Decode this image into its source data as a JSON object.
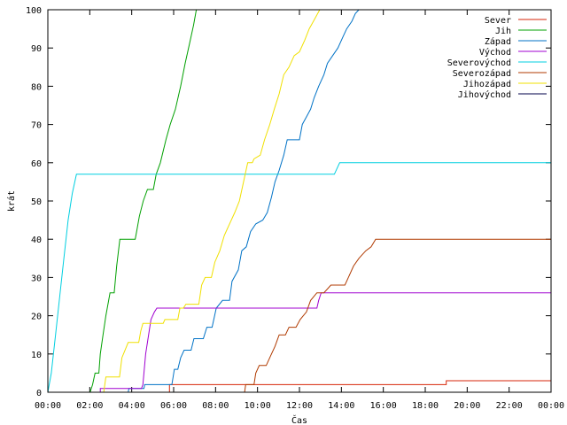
{
  "chart_data": {
    "type": "line",
    "title": "",
    "xlabel": "Čas",
    "ylabel": "krát",
    "xlim": [
      0,
      1440
    ],
    "ylim": [
      0,
      100
    ],
    "x_unit": "minutes since 00:00",
    "xticks": [
      {
        "value": 0,
        "label": "00:00"
      },
      {
        "value": 120,
        "label": "02:00"
      },
      {
        "value": 240,
        "label": "04:00"
      },
      {
        "value": 360,
        "label": "06:00"
      },
      {
        "value": 480,
        "label": "08:00"
      },
      {
        "value": 600,
        "label": "10:00"
      },
      {
        "value": 720,
        "label": "12:00"
      },
      {
        "value": 840,
        "label": "14:00"
      },
      {
        "value": 960,
        "label": "16:00"
      },
      {
        "value": 1080,
        "label": "18:00"
      },
      {
        "value": 1200,
        "label": "20:00"
      },
      {
        "value": 1320,
        "label": "22:00"
      },
      {
        "value": 1440,
        "label": "00:00"
      }
    ],
    "yticks": [
      0,
      10,
      20,
      30,
      40,
      50,
      60,
      70,
      80,
      90,
      100
    ],
    "grid": false,
    "legend_position": "top-right",
    "series": [
      {
        "name": "Sever",
        "color": "#d72608",
        "points": [
          [
            0,
            0
          ],
          [
            348,
            0
          ],
          [
            348,
            2
          ],
          [
            1140,
            2
          ],
          [
            1140,
            3
          ],
          [
            1440,
            3
          ]
        ]
      },
      {
        "name": "Jih",
        "color": "#00a000",
        "points": [
          [
            121,
            0
          ],
          [
            128,
            2
          ],
          [
            135,
            5
          ],
          [
            146,
            5
          ],
          [
            150,
            10
          ],
          [
            158,
            15
          ],
          [
            166,
            20
          ],
          [
            178,
            26
          ],
          [
            190,
            26
          ],
          [
            197,
            33
          ],
          [
            206,
            40
          ],
          [
            250,
            40
          ],
          [
            254,
            42
          ],
          [
            262,
            46
          ],
          [
            273,
            50
          ],
          [
            285,
            53
          ],
          [
            302,
            53
          ],
          [
            310,
            57
          ],
          [
            322,
            60
          ],
          [
            338,
            66
          ],
          [
            350,
            70
          ],
          [
            365,
            74
          ],
          [
            380,
            80
          ],
          [
            393,
            86
          ],
          [
            405,
            91
          ],
          [
            417,
            96
          ],
          [
            425,
            100
          ]
        ]
      },
      {
        "name": "Západ",
        "color": "#0072c6",
        "points": [
          [
            0,
            0
          ],
          [
            230,
            0
          ],
          [
            232,
            1
          ],
          [
            275,
            1
          ],
          [
            277,
            2
          ],
          [
            355,
            2
          ],
          [
            362,
            6
          ],
          [
            372,
            6
          ],
          [
            380,
            9
          ],
          [
            390,
            11
          ],
          [
            410,
            11
          ],
          [
            418,
            14
          ],
          [
            445,
            14
          ],
          [
            455,
            17
          ],
          [
            470,
            17
          ],
          [
            482,
            22
          ],
          [
            500,
            24
          ],
          [
            520,
            24
          ],
          [
            527,
            29
          ],
          [
            545,
            32
          ],
          [
            555,
            37
          ],
          [
            568,
            38
          ],
          [
            580,
            42
          ],
          [
            595,
            44
          ],
          [
            615,
            45
          ],
          [
            628,
            47
          ],
          [
            640,
            51
          ],
          [
            650,
            55
          ],
          [
            662,
            58
          ],
          [
            675,
            62
          ],
          [
            685,
            66
          ],
          [
            720,
            66
          ],
          [
            728,
            70
          ],
          [
            740,
            72
          ],
          [
            752,
            74
          ],
          [
            762,
            77
          ],
          [
            775,
            80
          ],
          [
            790,
            83
          ],
          [
            800,
            86
          ],
          [
            815,
            88
          ],
          [
            830,
            90
          ],
          [
            845,
            93
          ],
          [
            855,
            95
          ],
          [
            870,
            97
          ],
          [
            880,
            99
          ],
          [
            890,
            100
          ],
          [
            1440,
            100
          ]
        ]
      },
      {
        "name": "Východ",
        "color": "#a000d0",
        "points": [
          [
            150,
            0
          ],
          [
            150,
            1
          ],
          [
            268,
            1
          ],
          [
            272,
            2
          ],
          [
            280,
            10
          ],
          [
            295,
            19
          ],
          [
            305,
            21
          ],
          [
            312,
            22
          ],
          [
            770,
            22
          ],
          [
            775,
            24
          ],
          [
            782,
            26
          ],
          [
            1440,
            26
          ]
        ]
      },
      {
        "name": "Severovýchod",
        "color": "#00cfe0",
        "points": [
          [
            0,
            0
          ],
          [
            10,
            5
          ],
          [
            22,
            15
          ],
          [
            34,
            25
          ],
          [
            46,
            35
          ],
          [
            58,
            45
          ],
          [
            70,
            52
          ],
          [
            82,
            57
          ],
          [
            820,
            57
          ],
          [
            825,
            58
          ],
          [
            835,
            60
          ],
          [
            1440,
            60
          ]
        ]
      },
      {
        "name": "Severozápad",
        "color": "#b03a00",
        "points": [
          [
            0,
            0
          ],
          [
            563,
            0
          ],
          [
            566,
            2
          ],
          [
            590,
            2
          ],
          [
            595,
            5
          ],
          [
            605,
            7
          ],
          [
            625,
            7
          ],
          [
            640,
            10
          ],
          [
            650,
            12
          ],
          [
            662,
            15
          ],
          [
            680,
            15
          ],
          [
            690,
            17
          ],
          [
            710,
            17
          ],
          [
            722,
            19
          ],
          [
            740,
            21
          ],
          [
            752,
            24
          ],
          [
            770,
            26
          ],
          [
            790,
            26
          ],
          [
            810,
            28
          ],
          [
            850,
            28
          ],
          [
            860,
            30
          ],
          [
            875,
            33
          ],
          [
            890,
            35
          ],
          [
            910,
            37
          ],
          [
            925,
            38
          ],
          [
            938,
            40
          ],
          [
            1440,
            40
          ]
        ]
      },
      {
        "name": "Jihozápad",
        "color": "#f0e000",
        "points": [
          [
            0,
            0
          ],
          [
            160,
            0
          ],
          [
            166,
            4
          ],
          [
            205,
            4
          ],
          [
            212,
            9
          ],
          [
            230,
            13
          ],
          [
            260,
            13
          ],
          [
            266,
            16
          ],
          [
            272,
            18
          ],
          [
            330,
            18
          ],
          [
            335,
            19
          ],
          [
            372,
            19
          ],
          [
            378,
            22
          ],
          [
            388,
            22
          ],
          [
            395,
            23
          ],
          [
            432,
            23
          ],
          [
            440,
            28
          ],
          [
            450,
            30
          ],
          [
            468,
            30
          ],
          [
            478,
            34
          ],
          [
            492,
            37
          ],
          [
            505,
            41
          ],
          [
            520,
            44
          ],
          [
            535,
            47
          ],
          [
            548,
            50
          ],
          [
            560,
            55
          ],
          [
            572,
            60
          ],
          [
            585,
            60
          ],
          [
            590,
            61
          ],
          [
            608,
            62
          ],
          [
            620,
            66
          ],
          [
            635,
            70
          ],
          [
            648,
            74
          ],
          [
            662,
            78
          ],
          [
            675,
            83
          ],
          [
            690,
            85
          ],
          [
            705,
            88
          ],
          [
            720,
            89
          ],
          [
            735,
            92
          ],
          [
            748,
            95
          ],
          [
            760,
            97
          ],
          [
            778,
            100
          ],
          [
            1440,
            100
          ]
        ]
      },
      {
        "name": "Jihovýchod",
        "color": "#00004a",
        "points": []
      }
    ]
  }
}
